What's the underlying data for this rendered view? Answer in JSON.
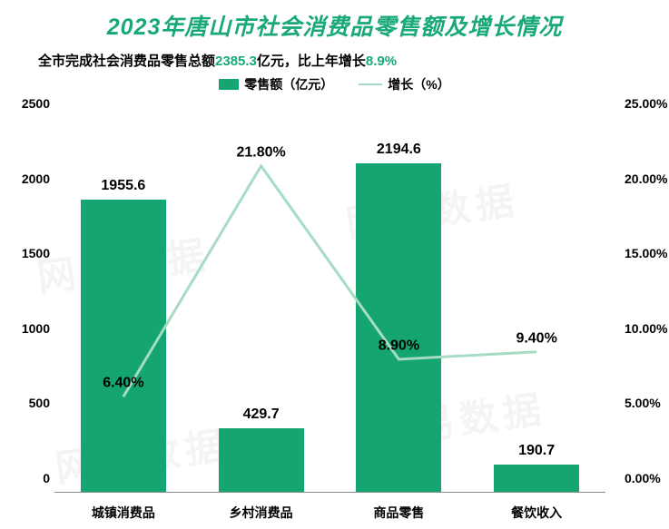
{
  "title": {
    "text": "2023年唐山市社会消费品零售额及增长情况",
    "color": "#18a87a",
    "fontsize": 25
  },
  "subtitle": {
    "prefix": "全市完成社会消费品零售总额",
    "value1": "2385.3",
    "mid": "亿元，比上年增长",
    "value2": "8.9%",
    "highlight_color": "#18a87a",
    "fontsize": 15,
    "color": "#000000"
  },
  "legend": {
    "bar_label": "零售额（亿元）",
    "line_label": "增长（%）",
    "bar_color": "#15a571",
    "line_color": "#a5dcc3",
    "fontsize": 14
  },
  "chart": {
    "type": "bar+line",
    "categories": [
      "城镇消费品",
      "乡村消费品",
      "商品零售",
      "餐饮收入"
    ],
    "bar_values": [
      1955.6,
      429.7,
      2194.6,
      190.7
    ],
    "bar_labels": [
      "1955.6",
      "429.7",
      "2194.6",
      "190.7"
    ],
    "line_values": [
      6.4,
      21.8,
      8.9,
      9.4
    ],
    "line_labels": [
      "6.40%",
      "21.80%",
      "8.90%",
      "9.40%"
    ],
    "bar_color": "#15a571",
    "line_color": "#a5dcc3",
    "line_width": 3,
    "bar_width_ratio": 0.62,
    "left_axis": {
      "min": 0,
      "max": 2500,
      "step": 500,
      "ticks": [
        "0",
        "500",
        "1000",
        "1500",
        "2000",
        "2500"
      ],
      "fontsize": 14,
      "color": "#000000",
      "weight": 700
    },
    "right_axis": {
      "min": 0,
      "max": 25,
      "step": 5,
      "ticks": [
        "0.00%",
        "5.00%",
        "10.00%",
        "15.00%",
        "20.00%",
        "25.00%"
      ],
      "fontsize": 14,
      "color": "#000000",
      "weight": 700
    },
    "x_axis": {
      "fontsize": 14,
      "color": "#000000",
      "weight": 700
    },
    "value_label_fontsize": 16,
    "value_label_color": "#000000",
    "baseline_color": "#888888",
    "background_color": "#ffffff"
  },
  "watermark_text": "网易数据"
}
